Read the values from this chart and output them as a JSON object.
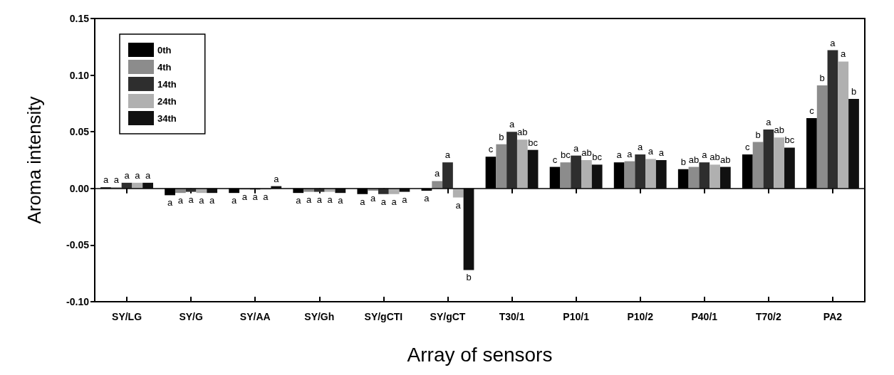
{
  "chart_data": {
    "type": "bar",
    "xlabel": "Array of sensors",
    "ylabel": "Aroma intensity",
    "categories": [
      "SY/LG",
      "SY/G",
      "SY/AA",
      "SY/Gh",
      "SY/gCTI",
      "SY/gCT",
      "T30/1",
      "P10/1",
      "P10/2",
      "P40/1",
      "T70/2",
      "PA2"
    ],
    "series": [
      {
        "name": "0th",
        "color": "#000000",
        "values": [
          0.001,
          -0.006,
          -0.004,
          -0.004,
          -0.005,
          -0.002,
          0.028,
          0.019,
          0.023,
          0.017,
          0.03,
          0.062
        ],
        "value_labels": [
          "a",
          "a",
          "a",
          "a",
          "a",
          "a",
          "c",
          "c",
          "a",
          "b",
          "c",
          "c"
        ]
      },
      {
        "name": "4th",
        "color": "#8c8c8c",
        "values": [
          0.001,
          -0.004,
          -0.001,
          -0.003,
          -0.002,
          0.0065,
          0.039,
          0.023,
          0.024,
          0.019,
          0.041,
          0.091
        ],
        "value_labels": [
          "a",
          "a",
          "a",
          "a",
          "a",
          "a",
          "b",
          "bc",
          "a",
          "ab",
          "b",
          "b"
        ]
      },
      {
        "name": "14th",
        "color": "#2e2e2e",
        "values": [
          0.005,
          -0.003,
          -0.001,
          -0.003,
          -0.005,
          0.023,
          0.05,
          0.029,
          0.03,
          0.023,
          0.052,
          0.122
        ],
        "value_labels": [
          "a",
          "a",
          "a",
          "a",
          "a",
          "a",
          "a",
          "a",
          "a",
          "a",
          "a",
          "a"
        ]
      },
      {
        "name": "24th",
        "color": "#b0b0b0",
        "values": [
          0.005,
          -0.004,
          -0.001,
          -0.003,
          -0.005,
          -0.008,
          0.043,
          0.025,
          0.026,
          0.021,
          0.045,
          0.112
        ],
        "value_labels": [
          "a",
          "a",
          "a",
          "a",
          "a",
          "a",
          "ab",
          "ab",
          "a",
          "ab",
          "ab",
          "a"
        ]
      },
      {
        "name": "34th",
        "color": "#111111",
        "values": [
          0.005,
          -0.004,
          0.002,
          -0.004,
          -0.003,
          -0.072,
          0.034,
          0.021,
          0.025,
          0.019,
          0.036,
          0.079
        ],
        "value_labels": [
          "a",
          "a",
          "a",
          "a",
          "a",
          "b",
          "bc",
          "bc",
          "a",
          "ab",
          "bc",
          "b"
        ]
      }
    ],
    "ylim": [
      -0.1,
      0.15
    ],
    "yticks": [
      {
        "value": -0.1,
        "label": "-0.10"
      },
      {
        "value": -0.05,
        "label": "-0.05"
      },
      {
        "value": 0,
        "label": "0.00"
      },
      {
        "value": 0.05,
        "label": "0.05"
      },
      {
        "value": 0.1,
        "label": "0.10"
      },
      {
        "value": 0.15,
        "label": "0.15"
      }
    ],
    "ref_lines": [
      {
        "axis": "y",
        "value": 0,
        "color": "#000000"
      }
    ],
    "grid": false,
    "legend": "top left"
  }
}
